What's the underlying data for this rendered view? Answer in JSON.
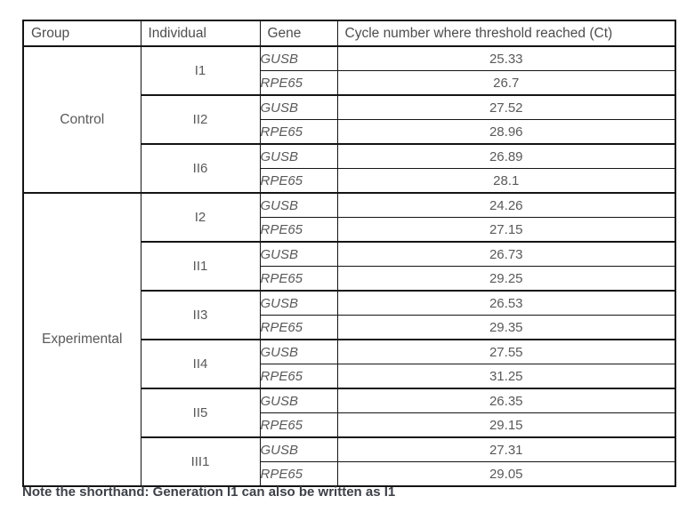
{
  "table": {
    "headers": {
      "group": "Group",
      "individual": "Individual",
      "gene": "Gene",
      "ct": "Cycle number where threshold reached (Ct)"
    },
    "groups": [
      {
        "name": "Control",
        "individuals": [
          {
            "id": "I1",
            "rows": [
              {
                "gene": "GUSB",
                "ct": "25.33"
              },
              {
                "gene": "RPE65",
                "ct": "26.7"
              }
            ]
          },
          {
            "id": "II2",
            "rows": [
              {
                "gene": "GUSB",
                "ct": "27.52"
              },
              {
                "gene": "RPE65",
                "ct": "28.96"
              }
            ]
          },
          {
            "id": "II6",
            "rows": [
              {
                "gene": "GUSB",
                "ct": "26.89"
              },
              {
                "gene": "RPE65",
                "ct": "28.1"
              }
            ]
          }
        ]
      },
      {
        "name": "Experimental",
        "individuals": [
          {
            "id": "I2",
            "rows": [
              {
                "gene": "GUSB",
                "ct": "24.26"
              },
              {
                "gene": "RPE65",
                "ct": "27.15"
              }
            ]
          },
          {
            "id": "II1",
            "rows": [
              {
                "gene": "GUSB",
                "ct": "26.73"
              },
              {
                "gene": "RPE65",
                "ct": "29.25"
              }
            ]
          },
          {
            "id": "II3",
            "rows": [
              {
                "gene": "GUSB",
                "ct": "26.53"
              },
              {
                "gene": "RPE65",
                "ct": "29.35"
              }
            ]
          },
          {
            "id": "II4",
            "rows": [
              {
                "gene": "GUSB",
                "ct": "27.55"
              },
              {
                "gene": "RPE65",
                "ct": "31.25"
              }
            ]
          },
          {
            "id": "II5",
            "rows": [
              {
                "gene": "GUSB",
                "ct": "26.35"
              },
              {
                "gene": "RPE65",
                "ct": "29.15"
              }
            ]
          },
          {
            "id": "III1",
            "rows": [
              {
                "gene": "GUSB",
                "ct": "27.31"
              },
              {
                "gene": "RPE65",
                "ct": "29.05"
              }
            ]
          }
        ]
      }
    ]
  },
  "note": "Note the shorthand: Generation I1 can also be written as I1",
  "colors": {
    "background": "#ffffff",
    "table_border": "#141414",
    "table_text": "#595959",
    "note_text": "#3d4148"
  }
}
